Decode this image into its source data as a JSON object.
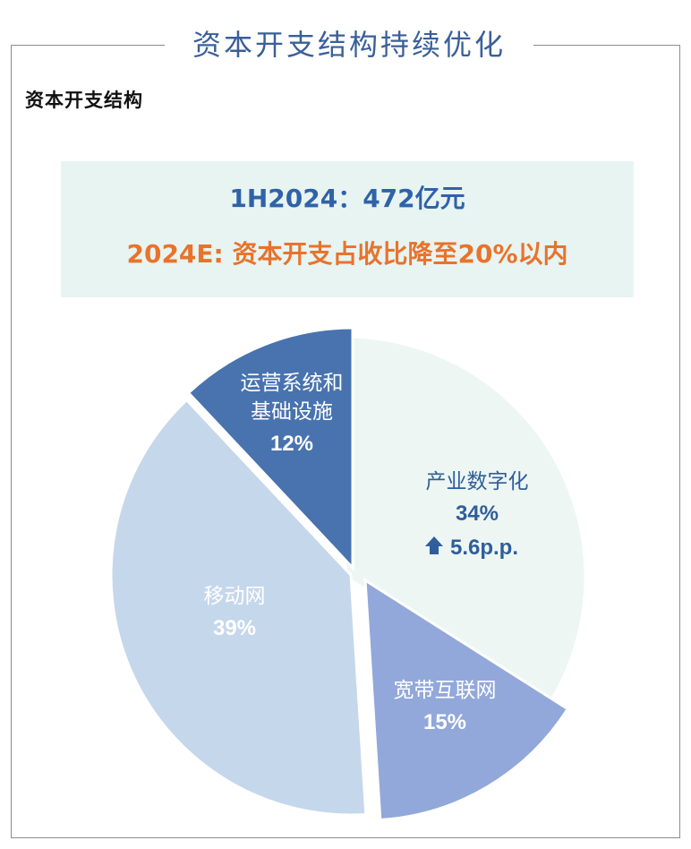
{
  "page_title": "资本开支结构持续优化",
  "chart_data": {
    "type": "pie",
    "title": "资本开支结构",
    "annotations": {
      "line1": "1H2024：472亿元",
      "line2": "2024E: 资本开支占收比降至20%以内"
    },
    "slices": [
      {
        "label": "产业数字化",
        "value": 34,
        "value_label": "34%",
        "note": "5.6p.p.",
        "note_icon": "up-arrow-icon",
        "color": "#edf6f3",
        "text_color": "#2f5e9a"
      },
      {
        "label": "宽带互联网",
        "value": 15,
        "value_label": "15%",
        "color": "#92a8da",
        "text_color": "#ffffff"
      },
      {
        "label": "移动网",
        "value": 39,
        "value_label": "39%",
        "color": "#c5d7eb",
        "text_color": "#ffffff"
      },
      {
        "label": "运营系统和基础设施",
        "label_lines": [
          "运营系统和",
          "基础设施"
        ],
        "value": 12,
        "value_label": "12%",
        "color": "#4873ae",
        "text_color": "#ffffff"
      }
    ]
  }
}
